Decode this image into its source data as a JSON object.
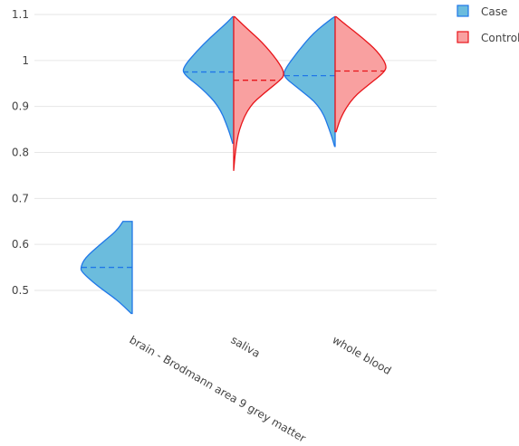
{
  "chart_data": {
    "type": "violin",
    "categories": [
      "brain - Brodmann area 9 grey matter",
      "saliva",
      "whole blood"
    ],
    "y_ticks": [
      "0.5",
      "0.6",
      "0.7",
      "0.8",
      "0.9",
      "1",
      "1.1"
    ],
    "ylim": [
      0.42,
      1.1
    ],
    "grid": true,
    "legend_position": "top-right",
    "series": [
      {
        "name": "Case",
        "side": "negative",
        "fill": "#6bbcdd",
        "line": "#1f77e8",
        "violins": [
          {
            "category": "brain - Brodmann area 9 grey matter",
            "min": 0.45,
            "max": 0.65,
            "median": 0.55,
            "density": [
              [
                0.45,
                0.02
              ],
              [
                0.48,
                0.3
              ],
              [
                0.51,
                0.68
              ],
              [
                0.54,
                0.98
              ],
              [
                0.55,
                1.0
              ],
              [
                0.57,
                0.92
              ],
              [
                0.6,
                0.62
              ],
              [
                0.63,
                0.3
              ],
              [
                0.65,
                0.18
              ]
            ]
          },
          {
            "category": "saliva",
            "min": 0.82,
            "max": 1.095,
            "median": 0.975,
            "density": [
              [
                0.82,
                0.02
              ],
              [
                0.85,
                0.1
              ],
              [
                0.9,
                0.28
              ],
              [
                0.94,
                0.62
              ],
              [
                0.97,
                0.97
              ],
              [
                0.985,
                0.98
              ],
              [
                1.02,
                0.72
              ],
              [
                1.05,
                0.45
              ],
              [
                1.08,
                0.15
              ],
              [
                1.095,
                0.02
              ]
            ]
          },
          {
            "category": "whole blood",
            "min": 0.813,
            "max": 1.095,
            "median": 0.967,
            "density": [
              [
                0.813,
                0.01
              ],
              [
                0.84,
                0.08
              ],
              [
                0.9,
                0.28
              ],
              [
                0.94,
                0.72
              ],
              [
                0.965,
                1.0
              ],
              [
                0.98,
                0.98
              ],
              [
                1.02,
                0.72
              ],
              [
                1.06,
                0.42
              ],
              [
                1.09,
                0.08
              ],
              [
                1.095,
                0.01
              ]
            ]
          }
        ]
      },
      {
        "name": "Control",
        "side": "positive",
        "fill": "#f9a0a0",
        "line": "#e8151a",
        "violins": [
          {
            "category": "saliva",
            "min": 0.76,
            "max": 1.095,
            "median": 0.957,
            "density": [
              [
                0.76,
                0.0
              ],
              [
                0.8,
                0.03
              ],
              [
                0.85,
                0.1
              ],
              [
                0.9,
                0.3
              ],
              [
                0.93,
                0.6
              ],
              [
                0.955,
                0.88
              ],
              [
                0.97,
                1.0
              ],
              [
                1.0,
                0.85
              ],
              [
                1.04,
                0.55
              ],
              [
                1.07,
                0.25
              ],
              [
                1.095,
                0.02
              ]
            ]
          },
          {
            "category": "whole blood",
            "min": 0.845,
            "max": 1.095,
            "median": 0.977,
            "density": [
              [
                0.845,
                0.02
              ],
              [
                0.88,
                0.12
              ],
              [
                0.92,
                0.35
              ],
              [
                0.95,
                0.68
              ],
              [
                0.975,
                0.96
              ],
              [
                0.99,
                1.0
              ],
              [
                1.02,
                0.82
              ],
              [
                1.05,
                0.52
              ],
              [
                1.08,
                0.18
              ],
              [
                1.095,
                0.02
              ]
            ]
          }
        ]
      }
    ]
  }
}
